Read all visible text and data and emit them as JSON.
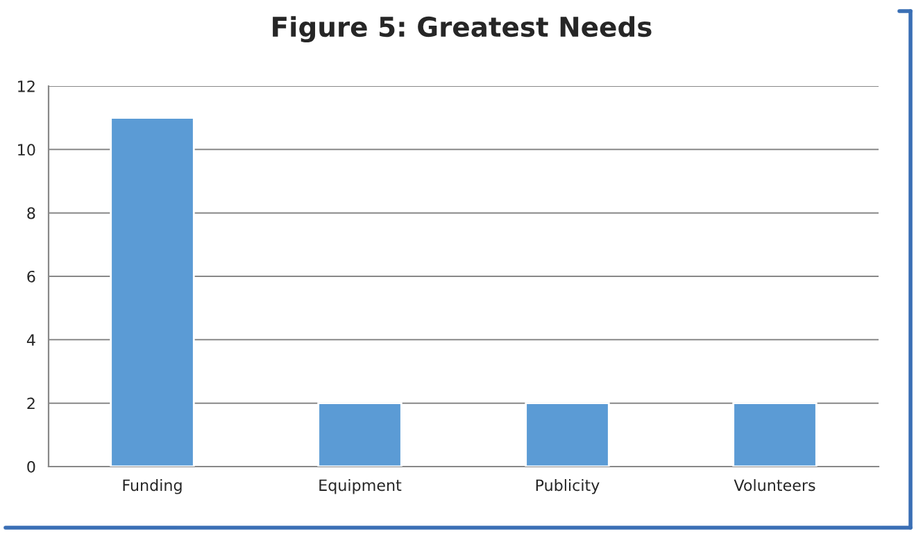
{
  "chart_data": {
    "type": "bar",
    "title": "Figure 5: Greatest Needs",
    "categories": [
      "Funding",
      "Equipment",
      "Publicity",
      "Volunteers"
    ],
    "values": [
      11,
      2,
      2,
      2
    ],
    "color": "#5b9bd5",
    "ylim": [
      0,
      12
    ],
    "yticks": [
      0,
      2,
      4,
      6,
      8,
      10,
      12
    ],
    "grid": "y",
    "legend": false
  }
}
